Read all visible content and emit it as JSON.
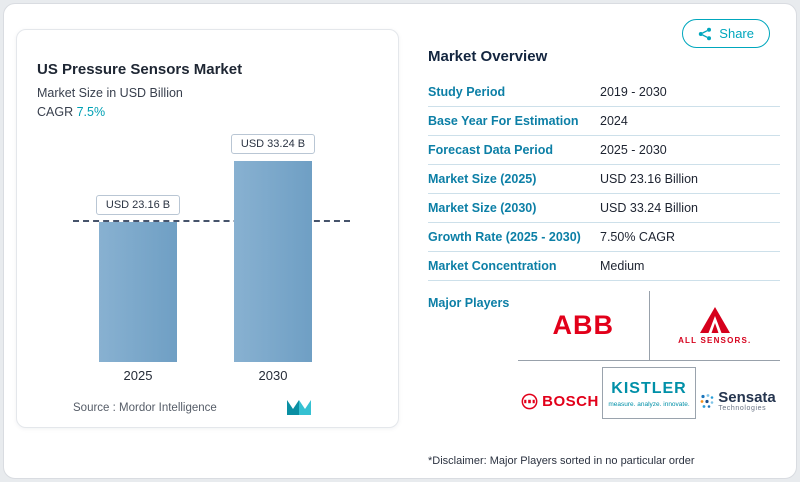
{
  "colors": {
    "accent_teal": "#00a7bd",
    "label_blue": "#0c7fa6",
    "bar_blue": "#7ba8c9",
    "logo_red": "#e2001a",
    "kistler_teal": "#0090a8"
  },
  "share": {
    "label": "Share"
  },
  "chart": {
    "title": "US Pressure Sensors Market",
    "subtitle": "Market Size in USD Billion",
    "cagr_label": "CAGR",
    "cagr_value": "7.5%",
    "source_label": "Source :  Mordor Intelligence"
  },
  "chart_data": {
    "type": "bar",
    "title": "US Pressure Sensors Market",
    "subtitle": "Market Size in USD Billion",
    "categories": [
      "2025",
      "2030"
    ],
    "values": [
      23.16,
      33.24
    ],
    "bar_labels": [
      "USD 23.16 B",
      "USD 33.24 B"
    ],
    "ylabel": "USD Billion",
    "ylim": [
      0,
      40
    ],
    "cagr": "7.5%",
    "reference_line": 23.16,
    "grid": false,
    "legend": false
  },
  "overview": {
    "title": "Market Overview",
    "rows": [
      {
        "label": "Study Period",
        "value": "2019 - 2030"
      },
      {
        "label": "Base Year For Estimation",
        "value": "2024"
      },
      {
        "label": "Forecast Data Period",
        "value": "2025 - 2030"
      },
      {
        "label": "Market Size (2025)",
        "value": "USD 23.16 Billion"
      },
      {
        "label": "Market Size (2030)",
        "value": "USD 33.24 Billion"
      },
      {
        "label": "Growth Rate (2025 - 2030)",
        "value": "7.50% CAGR"
      },
      {
        "label": "Market Concentration",
        "value": "Medium"
      }
    ],
    "major_players_label": "Major Players",
    "players": {
      "abb": "ABB",
      "all_sensors": "ALL SENSORS.",
      "bosch": "BOSCH",
      "kistler": "KISTLER",
      "kistler_tagline": "measure. analyze. innovate.",
      "sensata": "Sensata",
      "sensata_sub": "Technologies"
    },
    "disclaimer": "*Disclaimer: Major Players sorted in no particular order"
  }
}
